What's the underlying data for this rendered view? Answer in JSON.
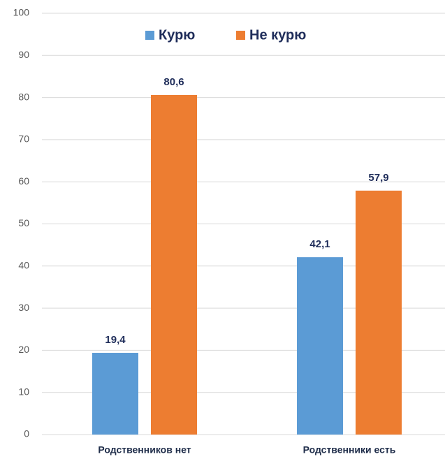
{
  "chart_data": {
    "type": "bar",
    "categories": [
      "Родственников нет",
      "Родственники есть"
    ],
    "series": [
      {
        "name": "Курю",
        "color": "#5b9bd5",
        "values": [
          19.4,
          42.1
        ],
        "value_labels": [
          "19,4",
          "42,1"
        ]
      },
      {
        "name": "Не курю",
        "color": "#ed7d31",
        "values": [
          80.6,
          57.9
        ],
        "value_labels": [
          "80,6",
          "57,9"
        ]
      }
    ],
    "ylim": [
      0,
      100
    ],
    "yticks": [
      0,
      10,
      20,
      30,
      40,
      50,
      60,
      70,
      80,
      90,
      100
    ],
    "grid": true,
    "legend": "top"
  }
}
